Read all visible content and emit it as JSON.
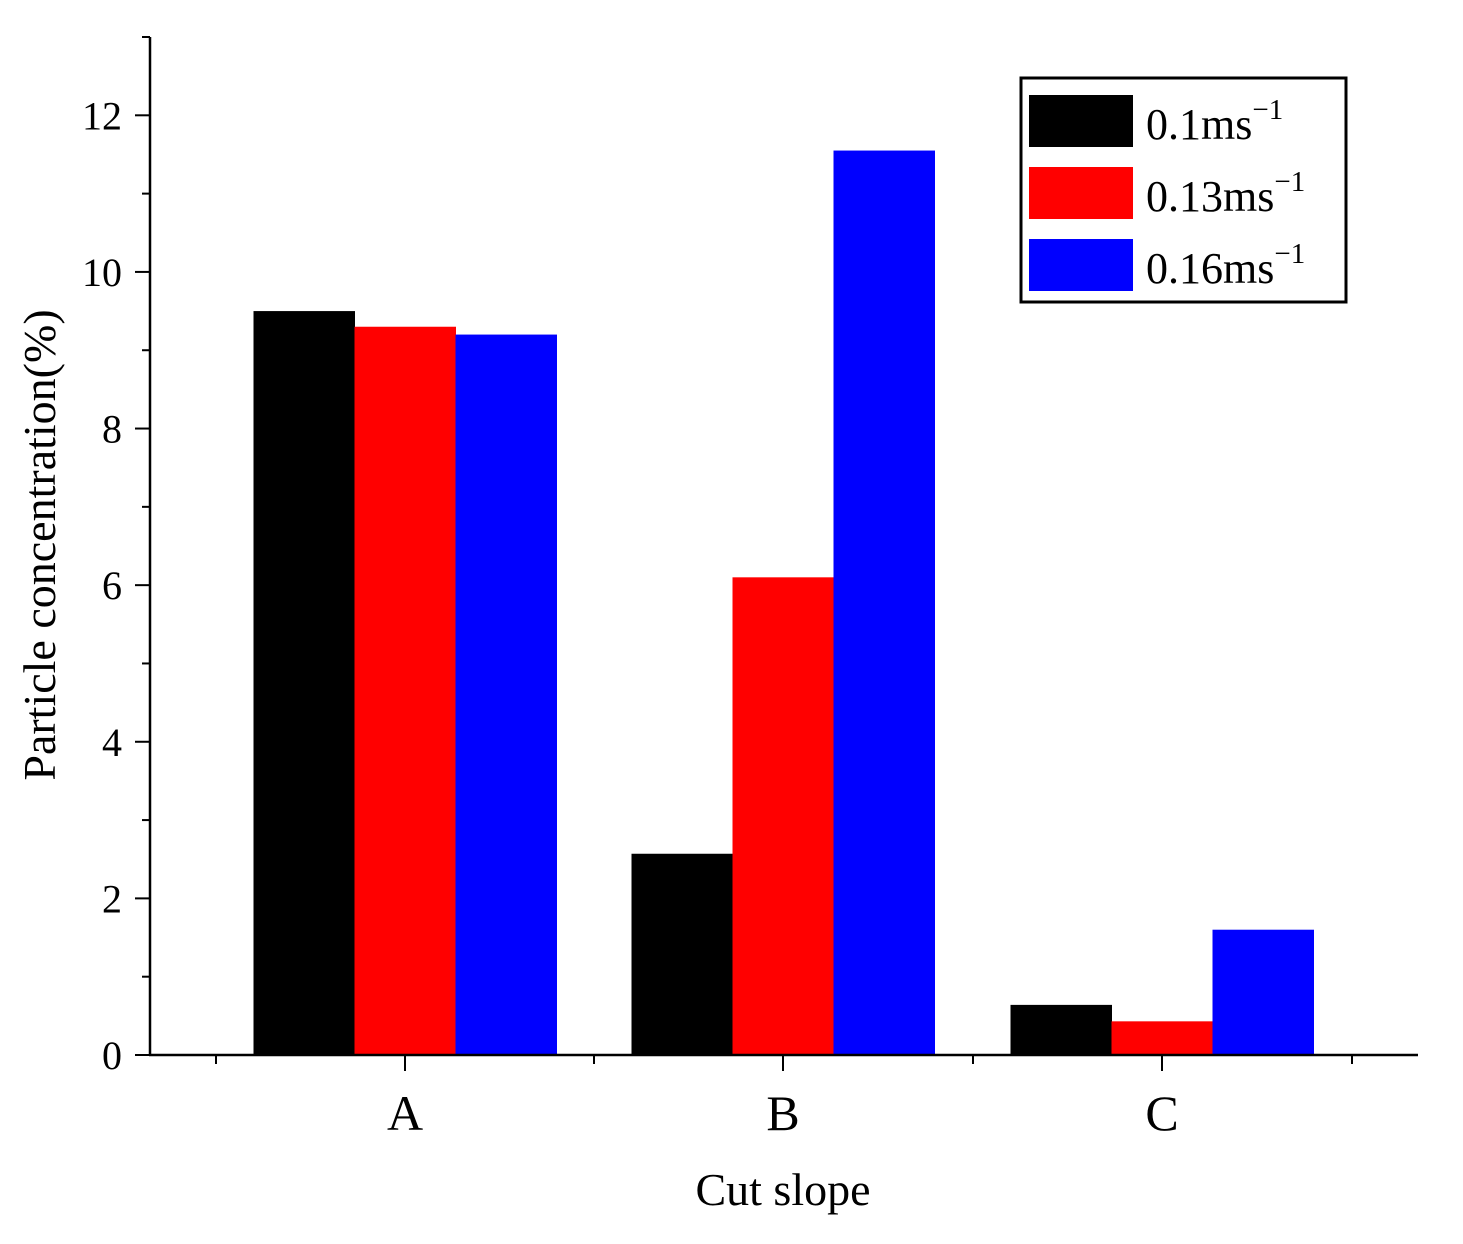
{
  "chart_data": {
    "type": "bar",
    "title": "",
    "xlabel": "Cut slope",
    "ylabel": "Particle concentration(%)",
    "categories": [
      "A",
      "B",
      "C"
    ],
    "ylim": [
      0,
      13
    ],
    "yticks": [
      0,
      2,
      4,
      6,
      8,
      10,
      12
    ],
    "grid": false,
    "legend_position": "top-right",
    "series": [
      {
        "name": "0.1ms",
        "unit_exponent": "−1",
        "color": "#000000",
        "values": [
          9.5,
          2.57,
          0.64
        ]
      },
      {
        "name": "0.13ms",
        "unit_exponent": "−1",
        "color": "#ff0000",
        "values": [
          9.3,
          6.1,
          0.43
        ]
      },
      {
        "name": "0.16ms",
        "unit_exponent": "−1",
        "color": "#0000ff",
        "values": [
          9.2,
          11.55,
          1.6
        ]
      }
    ]
  }
}
